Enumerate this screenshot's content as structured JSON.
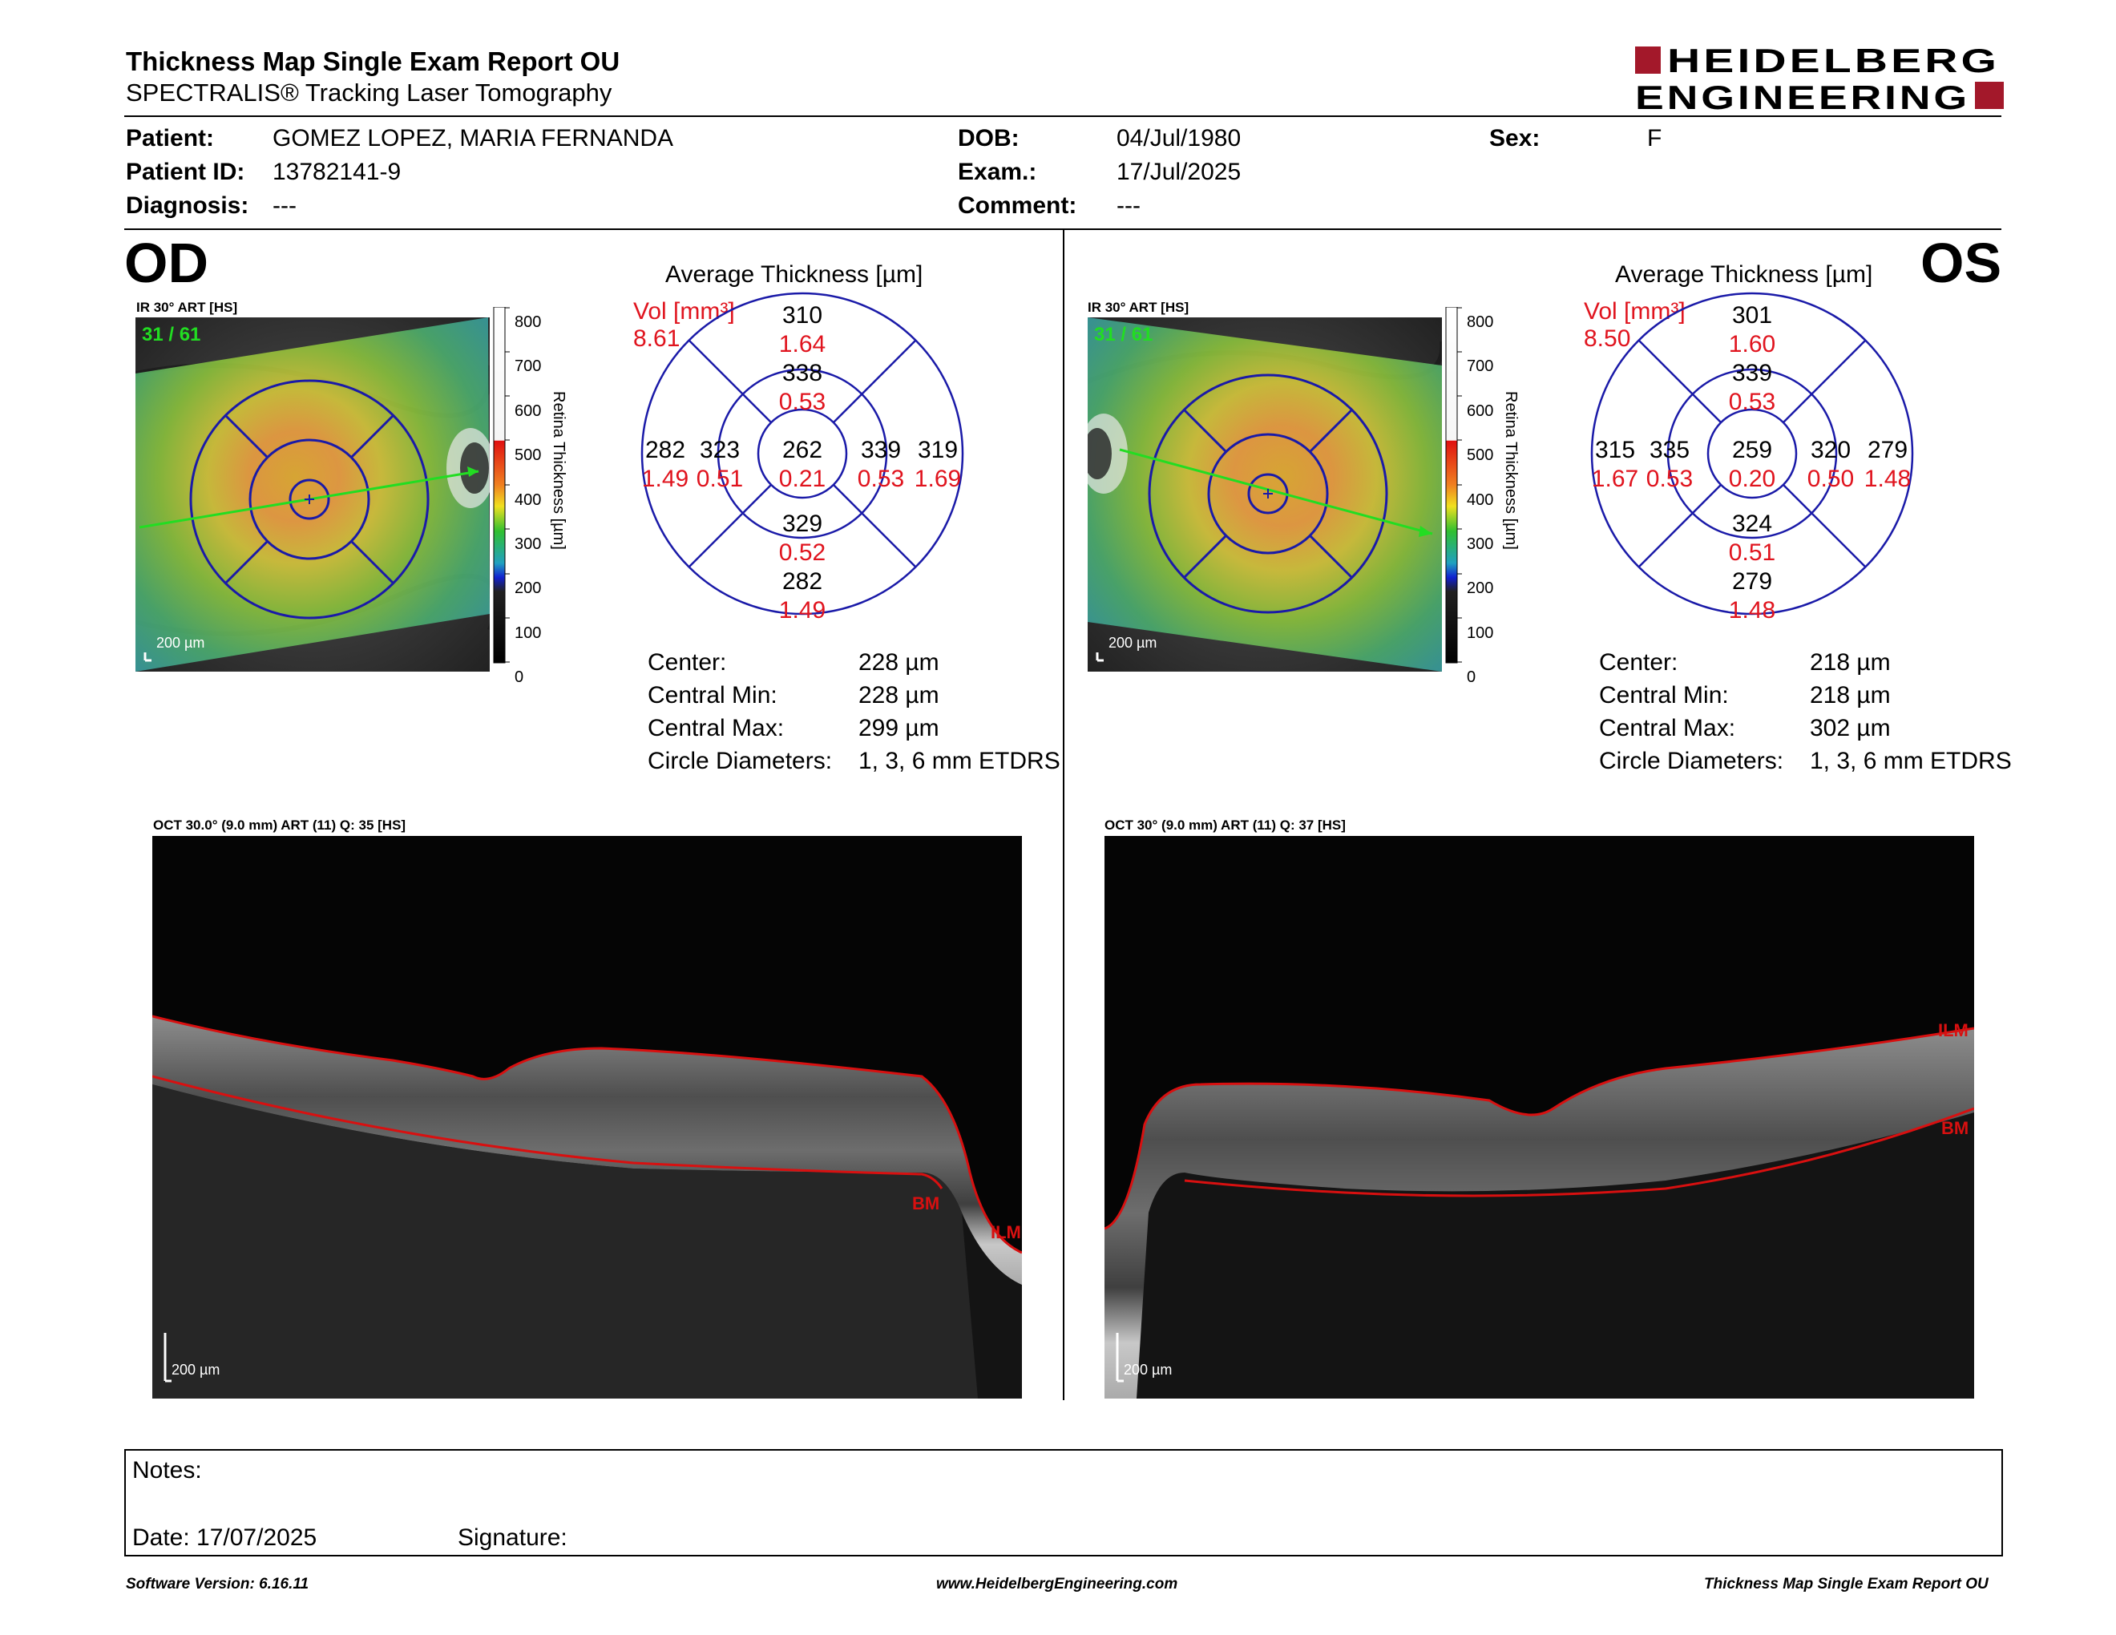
{
  "header": {
    "title": "Thickness Map Single Exam Report OU",
    "subtitle": "SPECTRALIS® Tracking Laser Tomography",
    "logo_line1": "HEIDELBERG",
    "logo_line2": "ENGINEERING"
  },
  "patient": {
    "patient_label": "Patient:",
    "patient_value": "GOMEZ LOPEZ, MARIA FERNANDA",
    "id_label": "Patient ID:",
    "id_value": "13782141-9",
    "diag_label": "Diagnosis:",
    "diag_value": "---",
    "dob_label": "DOB:",
    "dob_value": "04/Jul/1980",
    "exam_label": "Exam.:",
    "exam_value": "17/Jul/2025",
    "comment_label": "Comment:",
    "comment_value": "---",
    "sex_label": "Sex:",
    "sex_value": "F"
  },
  "od": {
    "eye": "OD",
    "ir_label": "IR 30° ART [HS]",
    "frame": "31 / 61",
    "scale": "200 µm",
    "colorbar_title": "Retina Thickness [µm]",
    "colorbar_ticks": [
      "800",
      "700",
      "600",
      "500",
      "400",
      "300",
      "200",
      "100",
      "0"
    ],
    "avg_title": "Average Thickness [µm]",
    "vol_label": "Vol [mm³]",
    "vol_total": "8.61",
    "etdrs": {
      "center": {
        "t": "262",
        "v": "0.21"
      },
      "inner_sup": {
        "t": "338",
        "v": "0.53"
      },
      "inner_inf": {
        "t": "329",
        "v": "0.52"
      },
      "inner_left": {
        "t": "323",
        "v": "0.51"
      },
      "inner_right": {
        "t": "339",
        "v": "0.53"
      },
      "outer_sup": {
        "t": "310",
        "v": "1.64"
      },
      "outer_inf": {
        "t": "282",
        "v": "1.49"
      },
      "outer_left": {
        "t": "282",
        "v": "1.49"
      },
      "outer_right": {
        "t": "319",
        "v": "1.69"
      }
    },
    "stats": [
      {
        "label": "Center:",
        "value": "228 µm"
      },
      {
        "label": "Central Min:",
        "value": "228 µm"
      },
      {
        "label": "Central Max:",
        "value": "299 µm"
      },
      {
        "label": "Circle Diameters:",
        "value": "1, 3, 6 mm ETDRS"
      }
    ],
    "oct_label": "OCT 30.0° (9.0 mm) ART (11) Q: 35 [HS]",
    "oct_scale": "200 µm",
    "layer_bm": "BM",
    "layer_ilm": "ILM"
  },
  "os": {
    "eye": "OS",
    "ir_label": "IR 30° ART [HS]",
    "frame": "31 / 61",
    "scale": "200 µm",
    "colorbar_title": "Retina Thickness [µm]",
    "colorbar_ticks": [
      "800",
      "700",
      "600",
      "500",
      "400",
      "300",
      "200",
      "100",
      "0"
    ],
    "avg_title": "Average Thickness [µm]",
    "vol_label": "Vol [mm³]",
    "vol_total": "8.50",
    "etdrs": {
      "center": {
        "t": "259",
        "v": "0.20"
      },
      "inner_sup": {
        "t": "339",
        "v": "0.53"
      },
      "inner_inf": {
        "t": "324",
        "v": "0.51"
      },
      "inner_left": {
        "t": "335",
        "v": "0.53"
      },
      "inner_right": {
        "t": "320",
        "v": "0.50"
      },
      "outer_sup": {
        "t": "301",
        "v": "1.60"
      },
      "outer_inf": {
        "t": "279",
        "v": "1.48"
      },
      "outer_left": {
        "t": "315",
        "v": "1.67"
      },
      "outer_right": {
        "t": "279",
        "v": "1.48"
      }
    },
    "stats": [
      {
        "label": "Center:",
        "value": "218 µm"
      },
      {
        "label": "Central Min:",
        "value": "218 µm"
      },
      {
        "label": "Central Max:",
        "value": "302 µm"
      },
      {
        "label": "Circle Diameters:",
        "value": "1, 3, 6 mm ETDRS"
      }
    ],
    "oct_label": "OCT 30° (9.0 mm) ART (11) Q: 37 [HS]",
    "oct_scale": "200 µm",
    "layer_bm": "BM",
    "layer_ilm": "ILM"
  },
  "notes": {
    "notes_label": "Notes:",
    "date_label": "Date: 17/07/2025",
    "signature_label": "Signature:"
  },
  "footer": {
    "software": "Software Version: 6.16.11",
    "website": "www.HeidelbergEngineering.com",
    "report": "Thickness Map Single Exam Report OU"
  },
  "colors": {
    "etdrs_blue": "#1a1aa8",
    "value_red": "#e0141e",
    "layer_red": "#d81010",
    "logo_red": "#a3182a",
    "frame_green": "#22dd22"
  }
}
